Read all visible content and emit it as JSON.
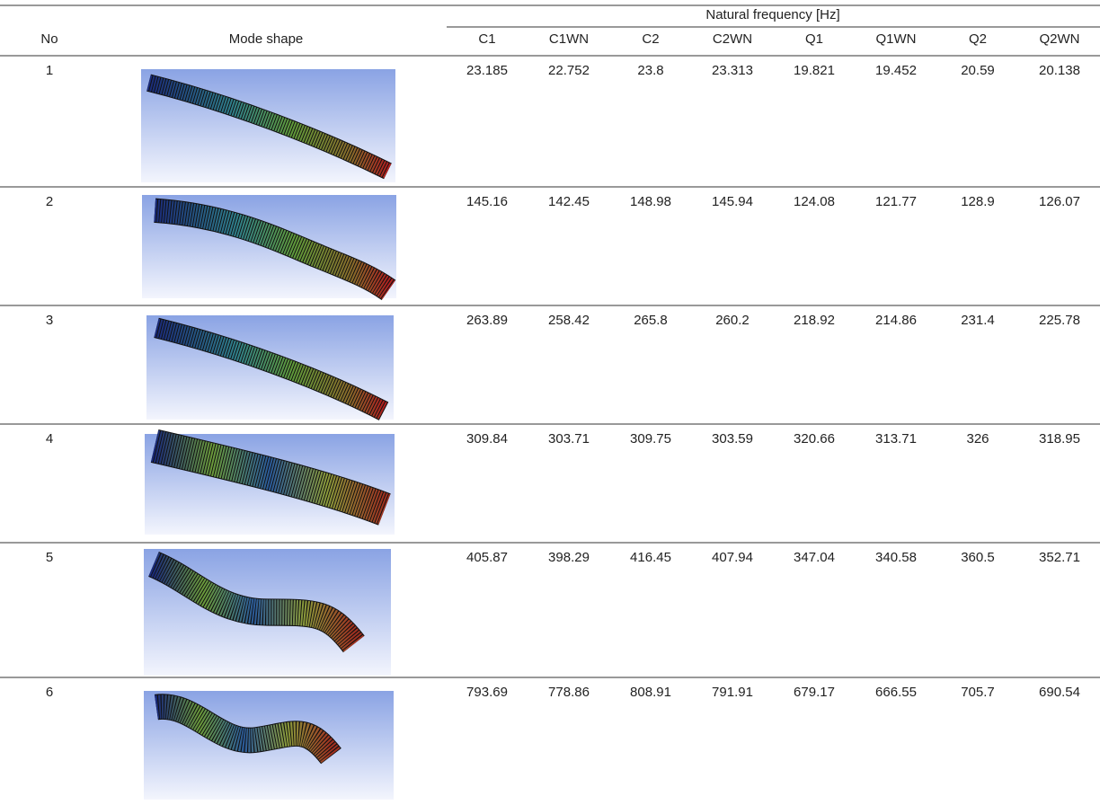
{
  "header": {
    "no": "No",
    "mode_shape": "Mode shape",
    "group": "Natural frequency [Hz]",
    "columns": [
      "C1",
      "C1WN",
      "C2",
      "C2WN",
      "Q1",
      "Q1WN",
      "Q2",
      "Q2WN"
    ]
  },
  "rows": [
    {
      "no": "1",
      "values": [
        "23.185",
        "22.752",
        "23.8",
        "23.313",
        "19.821",
        "19.452",
        "20.59",
        "20.138"
      ]
    },
    {
      "no": "2",
      "values": [
        "145.16",
        "142.45",
        "148.98",
        "145.94",
        "124.08",
        "121.77",
        "128.9",
        "126.07"
      ]
    },
    {
      "no": "3",
      "values": [
        "263.89",
        "258.42",
        "265.8",
        "260.2",
        "218.92",
        "214.86",
        "231.4",
        "225.78"
      ]
    },
    {
      "no": "4",
      "values": [
        "309.84",
        "303.71",
        "309.75",
        "303.59",
        "320.66",
        "313.71",
        "326",
        "318.95"
      ]
    },
    {
      "no": "5",
      "values": [
        "405.87",
        "398.29",
        "416.45",
        "407.94",
        "347.04",
        "340.58",
        "360.5",
        "352.71"
      ]
    },
    {
      "no": "6",
      "values": [
        "793.69",
        "778.86",
        "808.91",
        "791.91",
        "679.17",
        "666.55",
        "705.7",
        "690.54"
      ]
    }
  ]
}
